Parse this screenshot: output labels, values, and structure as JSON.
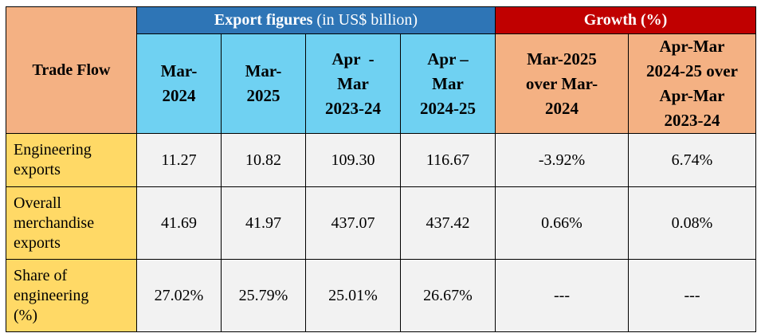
{
  "table": {
    "trade_flow_header": "Trade Flow",
    "export_header_bold": "Export figures",
    "export_header_rest": " (in US$ billion)",
    "growth_header": "Growth (%)",
    "columns": [
      {
        "line1": "Mar-",
        "line2": "2024"
      },
      {
        "line1": "Mar-",
        "line2": "2025"
      },
      {
        "line1": "Apr  -",
        "line2": "Mar",
        "line3": "2023-24"
      },
      {
        "line1": "Apr –",
        "line2": "Mar",
        "line3": "2024-25"
      },
      {
        "line1": "Mar-2025",
        "line2": "over Mar-",
        "line3": "2024"
      },
      {
        "line1": "Apr-Mar",
        "line2": "2024-25 over",
        "line3": "Apr-Mar",
        "line4": "2023-24"
      }
    ],
    "rows": [
      {
        "label_lines": [
          "Engineering",
          "exports"
        ],
        "values": [
          "11.27",
          "10.82",
          "109.30",
          "116.67",
          "-3.92%",
          "6.74%"
        ]
      },
      {
        "label_lines": [
          "Overall",
          "merchandise",
          "exports"
        ],
        "values": [
          "41.69",
          "41.97",
          "437.07",
          "437.42",
          "0.66%",
          "0.08%"
        ]
      },
      {
        "label_lines": [
          "Share of",
          "engineering",
          "(%)"
        ],
        "values": [
          "27.02%",
          "25.79%",
          "25.01%",
          "26.67%",
          "---",
          "---"
        ]
      }
    ],
    "colors": {
      "trade_flow_bg": "#f4b183",
      "export_header_bg": "#2e75b6",
      "growth_header_bg": "#c00000",
      "export_columns_bg": "#6fd1f2",
      "growth_columns_bg": "#f4b183",
      "row_label_bg": "#ffd966",
      "cell_bg": "#f2f2f2"
    }
  }
}
